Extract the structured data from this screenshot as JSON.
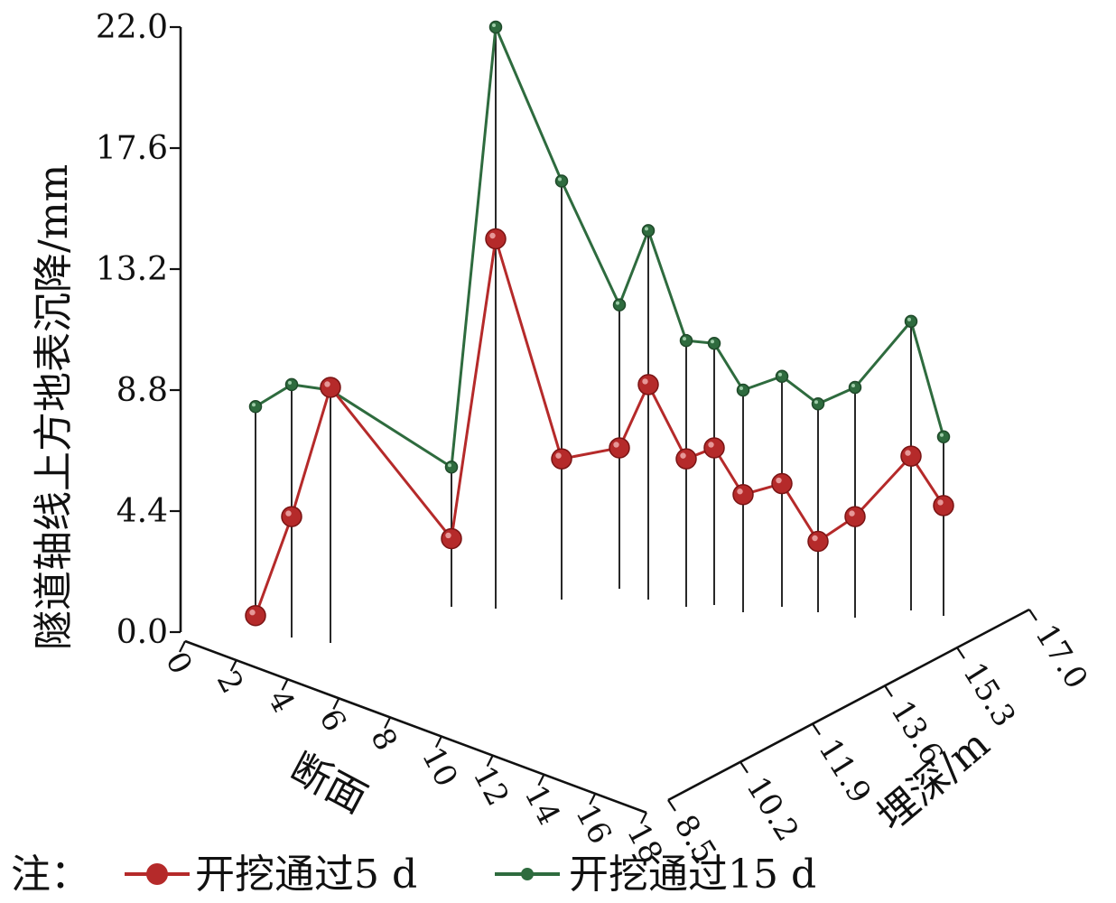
{
  "chart_data": {
    "type": "line",
    "projection": "3d",
    "ylabel": "隧道轴线上方地表沉降/mm",
    "xlabel": "断面",
    "zlabel": "埋深/m",
    "y_ticks": [
      "0.0",
      "4.4",
      "8.8",
      "13.2",
      "17.6",
      "22.0"
    ],
    "ylim": [
      0,
      22
    ],
    "x_ticks": [
      "0",
      "2",
      "4",
      "6",
      "8",
      "10",
      "12",
      "14",
      "16",
      "18"
    ],
    "z_ticks": [
      "8.5",
      "10.2",
      "11.9",
      "13.6",
      "15.3",
      "17.0"
    ],
    "legend_prefix": "注：",
    "legend_position": "bottom",
    "series": [
      {
        "name": "开挖通过5 d",
        "color": "#b52a2a",
        "values": [
          0.6,
          4.2,
          8.9,
          3.4,
          14.3,
          6.3,
          6.7,
          9.0,
          6.3,
          6.7,
          5.0,
          5.4,
          3.3,
          4.2,
          6.4,
          4.6
        ]
      },
      {
        "name": "开挖通过15 d",
        "color": "#2e6b3e",
        "values": [
          8.2,
          9.0,
          8.8,
          6.0,
          22.0,
          16.4,
          11.9,
          14.6,
          10.6,
          10.5,
          8.8,
          9.3,
          8.3,
          8.9,
          11.3,
          7.1
        ]
      }
    ]
  }
}
